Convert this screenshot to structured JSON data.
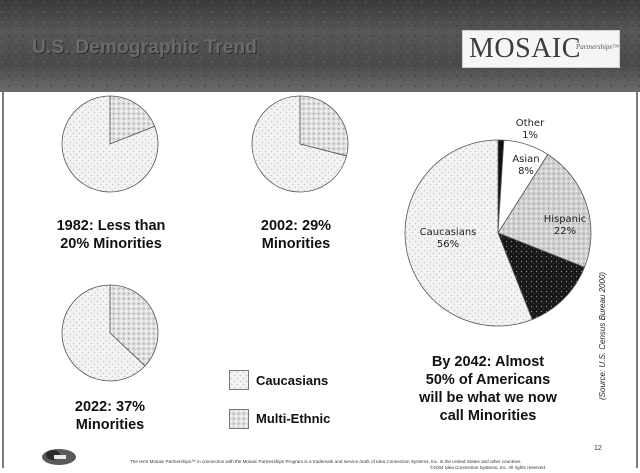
{
  "header": {
    "title": "U.S. Demographic Trend",
    "logo_text": "MOSAIC",
    "logo_sub": "Partnerships™"
  },
  "chart_data": [
    {
      "type": "pie",
      "title": "1982: Less than 20% Minorities",
      "slices": [
        {
          "label": "Caucasians",
          "value": 81
        },
        {
          "label": "Multi-Ethnic",
          "value": 19
        }
      ]
    },
    {
      "type": "pie",
      "title": "2002: 29% Minorities",
      "slices": [
        {
          "label": "Caucasians",
          "value": 71
        },
        {
          "label": "Multi-Ethnic",
          "value": 29
        }
      ]
    },
    {
      "type": "pie",
      "title": "2022: 37% Minorities",
      "slices": [
        {
          "label": "Caucasians",
          "value": 63
        },
        {
          "label": "Multi-Ethnic",
          "value": 37
        }
      ]
    },
    {
      "type": "pie",
      "title": "By 2042: Almost 50% of Americans will be what we now call Minorities",
      "slices": [
        {
          "label": "Other",
          "value": 1,
          "display": "1%",
          "color": "#111111"
        },
        {
          "label": "Asian",
          "value": 8,
          "display": "8%",
          "color": "#ffffff"
        },
        {
          "label": "Hispanic",
          "value": 22,
          "display": "22%",
          "color": "#d0d0d0"
        },
        {
          "label": "",
          "value": 13,
          "display": "",
          "color": "#1a1a1a"
        },
        {
          "label": "Caucasians",
          "value": 56,
          "display": "56%",
          "color": "#f0f0f0"
        }
      ]
    }
  ],
  "captions": {
    "c1982": [
      "1982: Less than",
      "20% Minorities"
    ],
    "c2002": [
      "2002: 29%",
      "Minorities"
    ],
    "c2022": [
      "2022: 37%",
      "Minorities"
    ],
    "c2042": [
      "By 2042: Almost",
      "50% of Americans",
      "will be what we now",
      "call Minorities"
    ]
  },
  "legend": {
    "items": [
      {
        "label": "Caucasians"
      },
      {
        "label": "Multi-Ethnic"
      }
    ]
  },
  "source": "(Source:  U.S. Census Bureau 2000)",
  "page_number": "12",
  "footer": {
    "line1": "The term Mosaic Partnerships™ in connection with the Mosaic Partnerships Program is a trademark and service mark of Idea Connection Systems, Inc. in the United States and other countries.",
    "line2": "©2004 Idea Connection Systems, Inc. All rights reserved."
  }
}
